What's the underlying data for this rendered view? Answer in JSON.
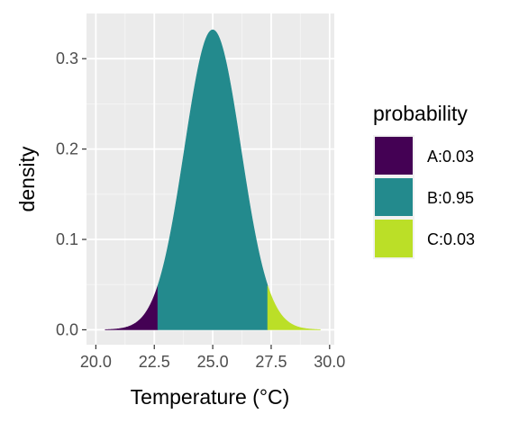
{
  "chart_data": {
    "type": "area",
    "title": "",
    "xlabel": "Temperature (°C)",
    "ylabel": "density",
    "xlim": [
      19.6,
      30.2
    ],
    "ylim": [
      -0.0165,
      0.35
    ],
    "x_ticks": [
      20.0,
      22.5,
      25.0,
      27.5,
      30.0
    ],
    "x_tick_labels": [
      "20.0",
      "22.5",
      "25.0",
      "27.5",
      "30.0"
    ],
    "y_ticks": [
      0.0,
      0.1,
      0.2,
      0.3
    ],
    "y_tick_labels": [
      "0.0",
      "0.1",
      "0.2",
      "0.3"
    ],
    "grid": true,
    "distribution": {
      "family": "normal",
      "mean": 25.0,
      "sd": 1.2,
      "x_range": [
        20.4,
        29.6
      ],
      "peak_density": 0.332
    },
    "legend": {
      "title": "probability",
      "placement": "right",
      "entries": [
        {
          "label": "A:0.03",
          "color": "#440154"
        },
        {
          "label": "B:0.95",
          "color": "#238A8D"
        },
        {
          "label": "C:0.03",
          "color": "#BBDF27"
        }
      ]
    },
    "series": [
      {
        "name": "A:0.03",
        "color": "#440154",
        "x_from": 20.4,
        "x_to": 22.65
      },
      {
        "name": "B:0.95",
        "color": "#238A8D",
        "x_from": 22.65,
        "x_to": 27.35
      },
      {
        "name": "C:0.03",
        "color": "#BBDF27",
        "x_from": 27.35,
        "x_to": 29.6
      }
    ]
  },
  "colors": {
    "panel_background": "#EBEBEB",
    "grid_major": "#FFFFFF",
    "tick_text": "#4D4D4D"
  }
}
